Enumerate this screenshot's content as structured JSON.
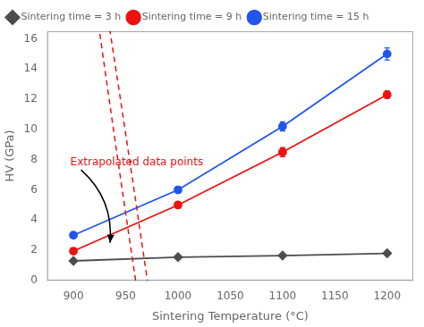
{
  "chart_data": {
    "type": "line",
    "xlabel": "Sintering Temperature (°C)",
    "ylabel": "HV (GPa)",
    "x": [
      900,
      1000,
      1100,
      1200
    ],
    "series": [
      {
        "name": "Sintering time = 3 h",
        "color": "#4d4d4d",
        "marker": "diamond",
        "values": [
          1.3,
          1.55,
          1.65,
          1.8
        ],
        "errors": [
          0.05,
          0.05,
          0.05,
          0.05
        ]
      },
      {
        "name": "Sintering time = 9 h",
        "color": "#ee1111",
        "marker": "circle",
        "values": [
          1.95,
          5.0,
          8.5,
          12.3
        ],
        "errors": [
          0.1,
          0.2,
          0.3,
          0.25
        ]
      },
      {
        "name": "Sintering time = 15 h",
        "color": "#2255ee",
        "marker": "circle",
        "values": [
          3.0,
          6.0,
          10.2,
          15.0
        ],
        "errors": [
          0.1,
          0.2,
          0.3,
          0.4
        ]
      }
    ],
    "xlim": [
      875,
      1225
    ],
    "xticks": [
      900,
      950,
      1000,
      1050,
      1100,
      1150,
      1200
    ],
    "ylim": [
      0,
      16.5
    ],
    "yticks": [
      0,
      2,
      4,
      6,
      8,
      10,
      12,
      14,
      16
    ],
    "grid": false,
    "legend": "upper left",
    "annotations": [
      {
        "text": "Extrapolated data points",
        "color": "#ee1111"
      }
    ]
  }
}
